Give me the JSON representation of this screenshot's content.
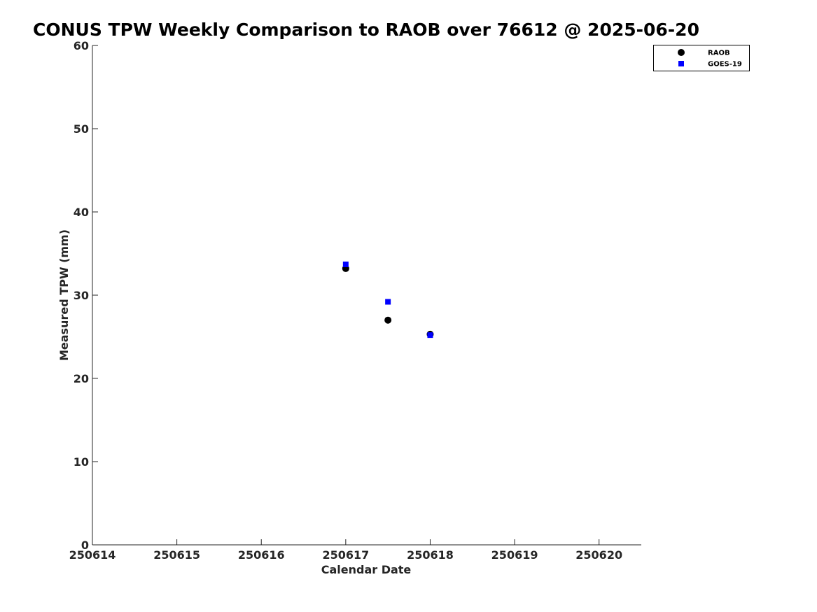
{
  "chart_data": {
    "type": "scatter",
    "title": "CONUS TPW Weekly Comparison to RAOB over 76612 @ 2025-06-20",
    "xlabel": "Calendar Date",
    "ylabel": "Measured TPW (mm)",
    "xlim": [
      250614,
      250620.5
    ],
    "ylim": [
      0,
      60
    ],
    "x_ticks": [
      250614,
      250615,
      250616,
      250617,
      250618,
      250619,
      250620
    ],
    "x_tick_labels": [
      "250614",
      "250615",
      "250616",
      "250617",
      "250618",
      "250619",
      "250620"
    ],
    "y_ticks": [
      0,
      10,
      20,
      30,
      40,
      50,
      60
    ],
    "y_tick_labels": [
      "0",
      "10",
      "20",
      "30",
      "40",
      "50",
      "60"
    ],
    "grid": false,
    "legend_position": "top-right",
    "series": [
      {
        "name": "RAOB",
        "marker": "circle",
        "color": "#000000",
        "points": [
          {
            "x": 250617.0,
            "y": 33.2
          },
          {
            "x": 250617.5,
            "y": 27.0
          },
          {
            "x": 250618.0,
            "y": 25.3
          }
        ]
      },
      {
        "name": "GOES-19",
        "marker": "square",
        "color": "#0000ff",
        "points": [
          {
            "x": 250617.0,
            "y": 33.7
          },
          {
            "x": 250617.5,
            "y": 29.2
          },
          {
            "x": 250618.0,
            "y": 25.2
          }
        ]
      }
    ]
  }
}
